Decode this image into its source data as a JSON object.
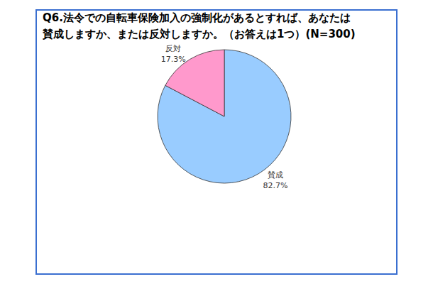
{
  "chart_data": {
    "type": "pie",
    "title": "Q6.法令での自転車保険加入の強制化があるとすれば、あなたは\n賛成しますか、または反対しますか。（お答えは1つ）(N=300)",
    "categories": [
      "賛成",
      "反対"
    ],
    "values": [
      82.7,
      17.3
    ],
    "value_labels": [
      "82.7%",
      "17.3%"
    ],
    "colors": [
      "#99ccff",
      "#ff99cc"
    ],
    "data_labels": true
  }
}
